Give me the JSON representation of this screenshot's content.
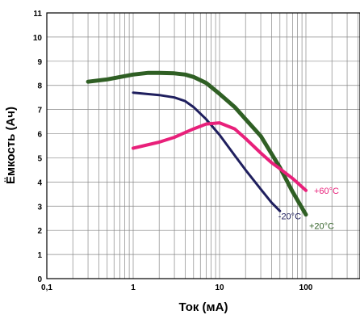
{
  "chart_data": {
    "type": "line",
    "title": "",
    "xlabel": "Ток (мА)",
    "ylabel": "Ёмкость (Ач)",
    "xscale": "log",
    "xlim": [
      0.1,
      420
    ],
    "ylim": [
      0,
      11
    ],
    "grid": true,
    "xticks": [
      "0,1",
      "1",
      "10",
      "100"
    ],
    "yticks": [
      "0",
      "1",
      "2",
      "3",
      "4",
      "5",
      "6",
      "7",
      "8",
      "9",
      "10",
      "11"
    ],
    "series": [
      {
        "name": "-20°C",
        "color": "#1f1f5e",
        "x": [
          1,
          2,
          3,
          4,
          5,
          7,
          10,
          15,
          20,
          30,
          40,
          50
        ],
        "y": [
          7.7,
          7.6,
          7.5,
          7.35,
          7.1,
          6.6,
          5.95,
          5.1,
          4.5,
          3.7,
          3.15,
          2.8
        ]
      },
      {
        "name": "+20°C",
        "color": "#2f5f24",
        "x": [
          0.3,
          0.5,
          1,
          1.5,
          2,
          3,
          4,
          5,
          7,
          10,
          15,
          20,
          30,
          50,
          70,
          100
        ],
        "y": [
          8.15,
          8.25,
          8.45,
          8.52,
          8.52,
          8.5,
          8.45,
          8.35,
          8.1,
          7.65,
          7.1,
          6.6,
          5.9,
          4.6,
          3.6,
          2.65
        ]
      },
      {
        "name": "+60°C",
        "color": "#e8207a",
        "x": [
          1,
          2,
          3,
          4,
          5,
          7,
          10,
          15,
          20,
          30,
          40,
          50,
          70,
          100
        ],
        "y": [
          5.4,
          5.65,
          5.85,
          6.05,
          6.2,
          6.4,
          6.45,
          6.2,
          5.8,
          5.2,
          4.8,
          4.55,
          4.15,
          3.65
        ]
      }
    ]
  }
}
